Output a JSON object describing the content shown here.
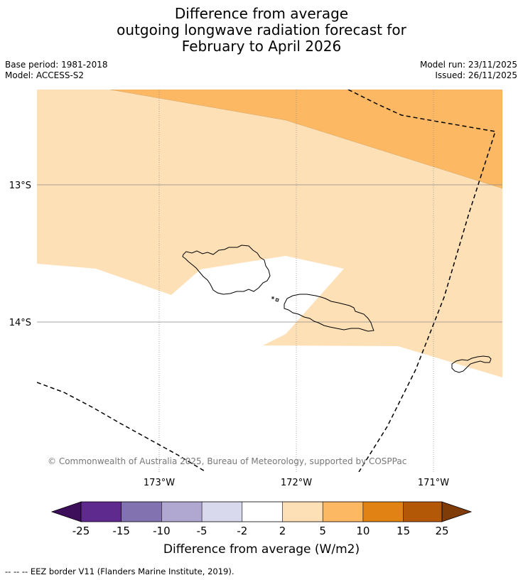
{
  "header": {
    "title_lines": [
      "Difference from average",
      "outgoing longwave radiation forecast for",
      "February to April 2026"
    ],
    "base_period": "Base period: 1981-2018",
    "model": "Model: ACCESS-S2",
    "model_run": "Model run: 23/11/2025",
    "issued": "Issued: 26/11/2025"
  },
  "map": {
    "lat_labels": [
      "13°S",
      "14°S"
    ],
    "lon_labels": [
      "173°W",
      "172°W",
      "171°W"
    ],
    "copyright": "© Commonwealth of Australia 2025, Bureau of Meteorology, supported by COSPPac",
    "colors": {
      "band_2_5": "#fde0b6",
      "band_5_10": "#fdb863",
      "coast": "#000000",
      "grid": "#888888"
    }
  },
  "colorbar": {
    "tick_labels": [
      "-25",
      "-15",
      "-10",
      "-5",
      "-2",
      "2",
      "5",
      "10",
      "15",
      "25"
    ],
    "colors": [
      "#3d0e5a",
      "#5e2a8d",
      "#8372b0",
      "#b1a8d2",
      "#d8d9ec",
      "#ffffff",
      "#fde0b6",
      "#fdb863",
      "#e08214",
      "#b35806",
      "#7f3b08"
    ],
    "label": "Difference from average (W/m2)"
  },
  "footnote": "--  --  -- EEZ border V11 (Flanders Marine Institute, 2019)."
}
